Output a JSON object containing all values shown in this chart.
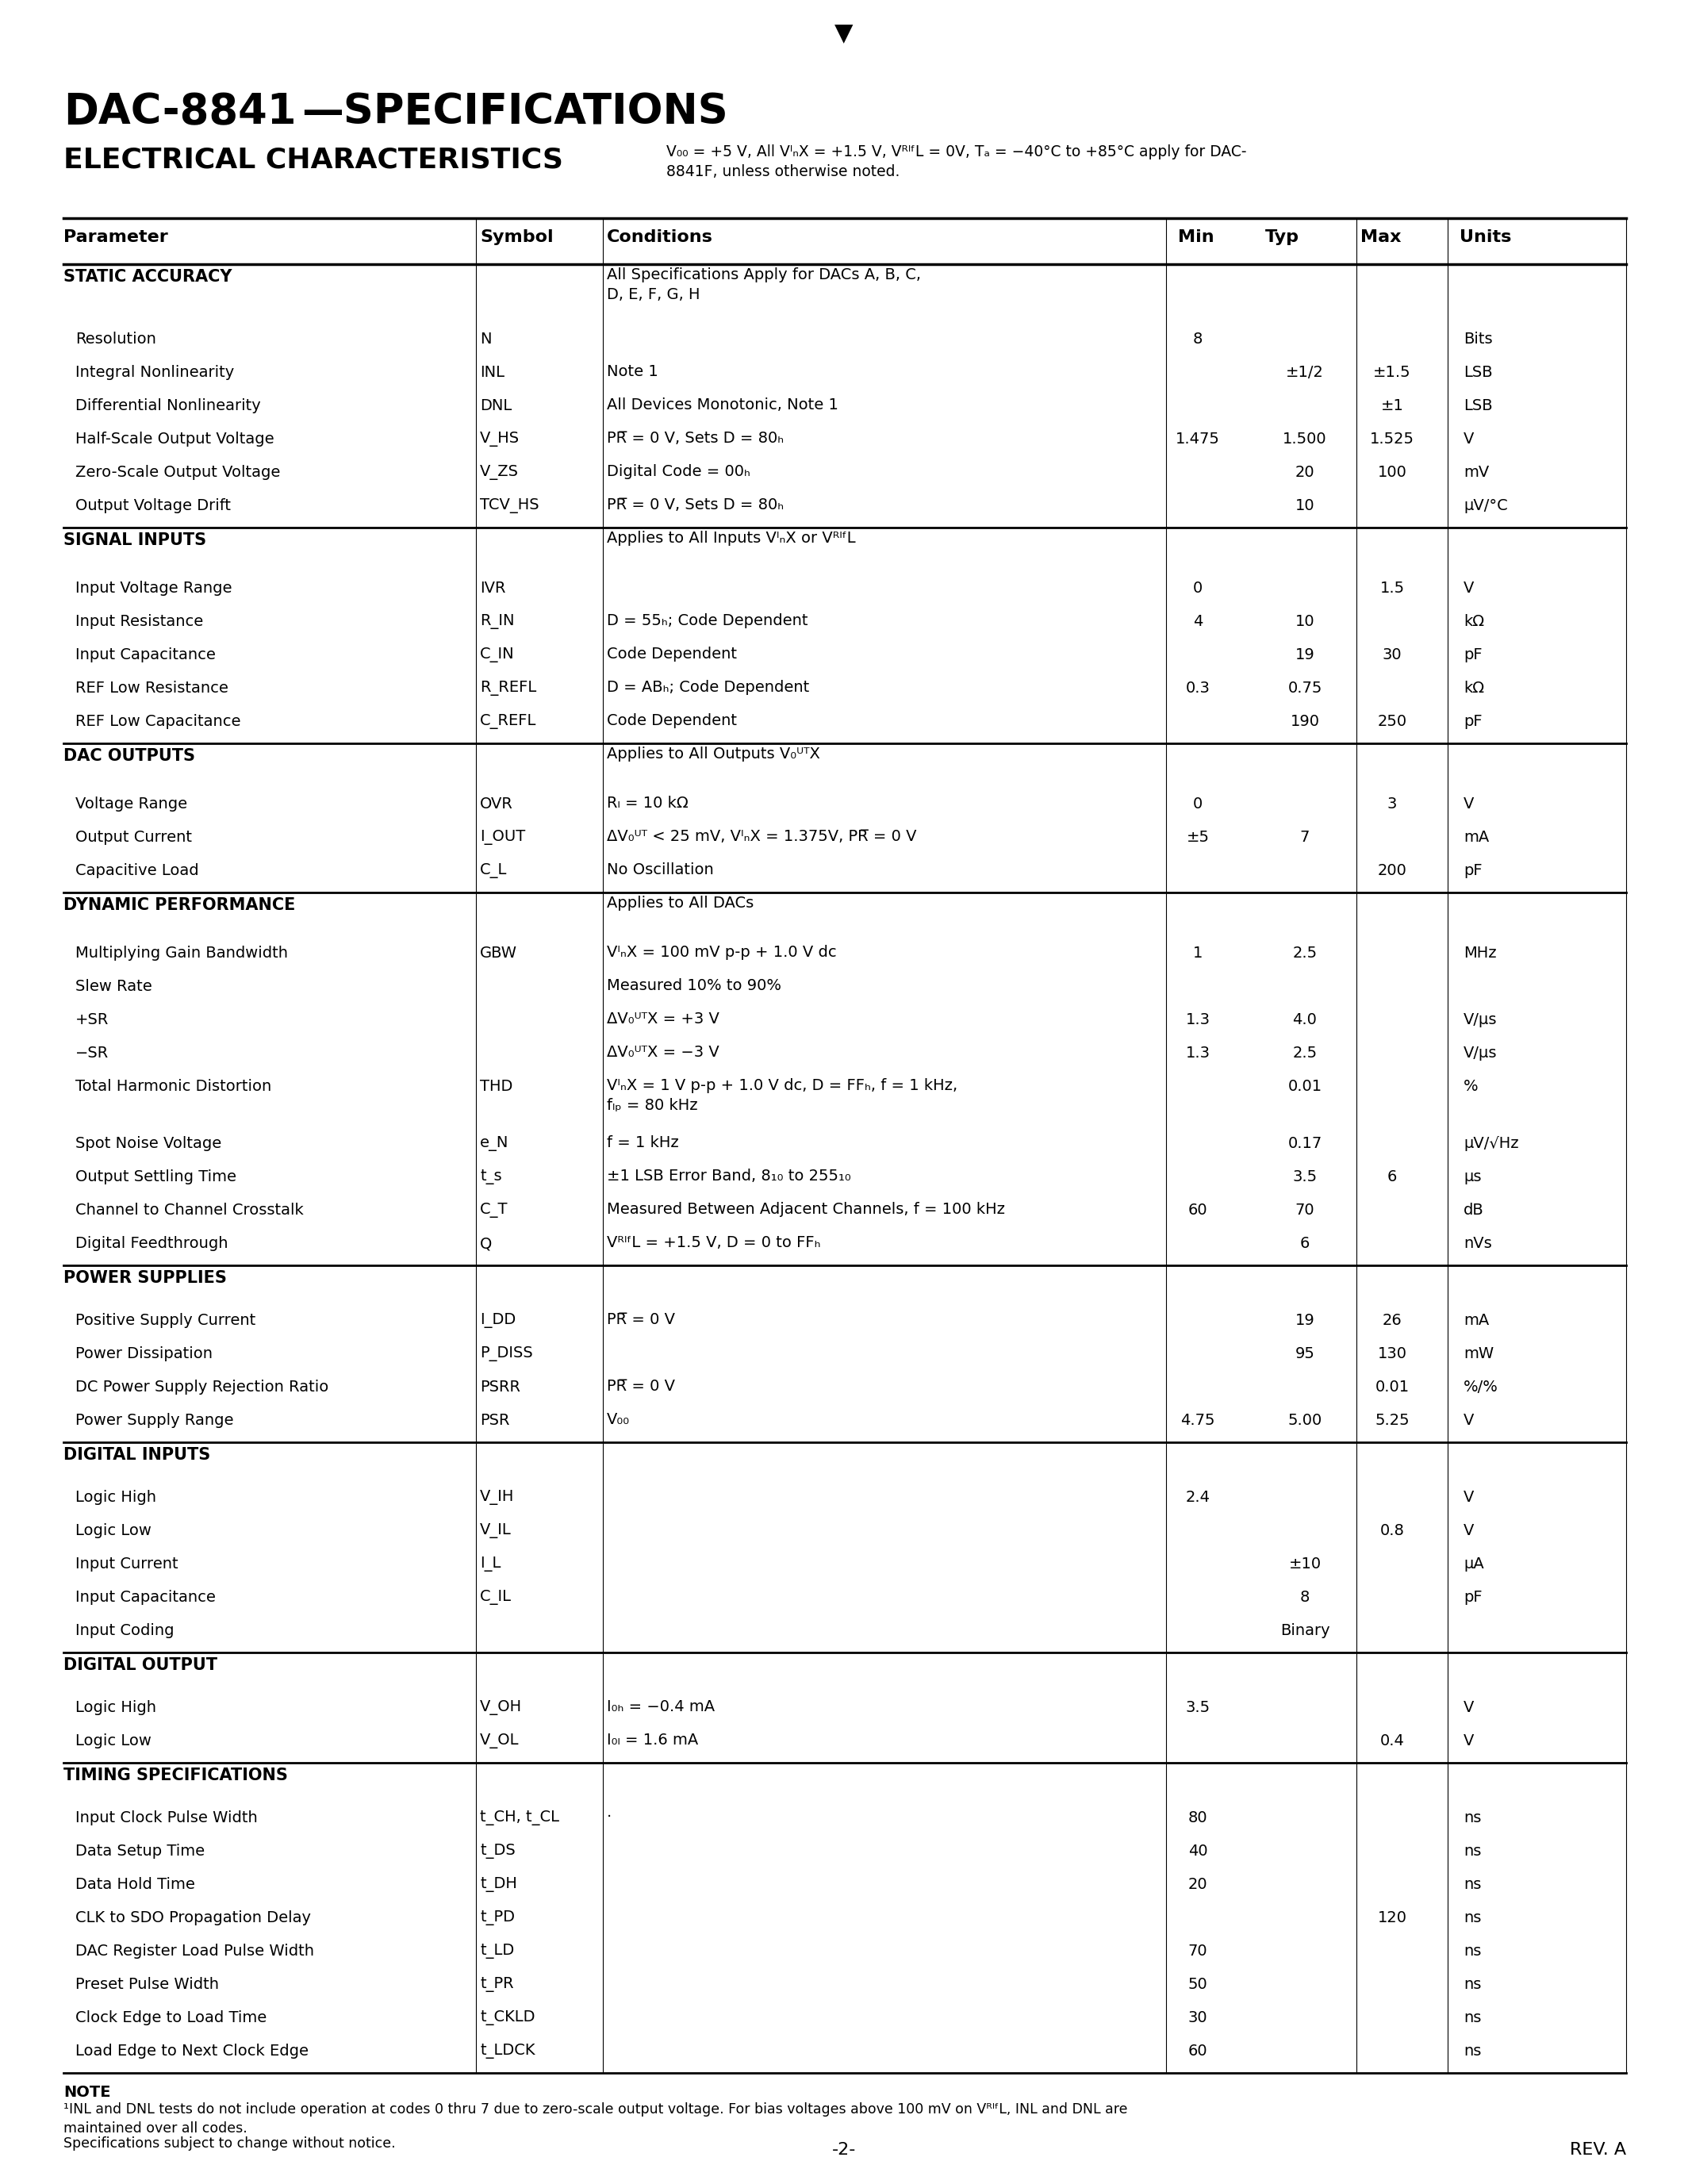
{
  "title": "DAC-8841 —SPECIFICATIONS",
  "subtitle_bold": "ELECTRICAL CHARACTERISTICS",
  "subtitle_small": "V₀₀ = +5 V, All VᴵₙX = +1.5 V, VᴿᴵᶠL = 0V, Tₐ = −40°C to +85°C apply for DAC-\n8841F, unless otherwise noted.",
  "page_num": "-2-",
  "rev": "REV. A",
  "bg_color": "#ffffff",
  "text_color": "#000000",
  "col_headers": [
    "Parameter",
    "Symbol",
    "Conditions",
    "Min",
    "Typ",
    "Max",
    "Units"
  ],
  "note1": "NOTE",
  "note2": "¹INL and DNL tests do not include operation at codes 0 thru 7 due to zero-scale output voltage. For bias voltages above 100 mV on VᴿᴵᶠL, INL and DNL are\nmaintained over all codes.",
  "note3": "Specifications subject to change without notice.",
  "table_rows": [
    {
      "type": "section",
      "param": "STATIC ACCURACY",
      "symbol": "",
      "cond": "All Specifications Apply for DACs A, B, C,\nD, E, F, G, H",
      "min": "",
      "typ": "",
      "max": "",
      "units": ""
    },
    {
      "type": "data",
      "param": "Resolution",
      "symbol": "N",
      "cond": "",
      "min": "8",
      "typ": "",
      "max": "",
      "units": "Bits"
    },
    {
      "type": "data",
      "param": "Integral Nonlinearity",
      "symbol": "INL",
      "cond": "Note 1",
      "min": "",
      "typ": "±1/2",
      "max": "±1.5",
      "units": "LSB"
    },
    {
      "type": "data",
      "param": "Differential Nonlinearity",
      "symbol": "DNL",
      "cond": "All Devices Monotonic, Note 1",
      "min": "",
      "typ": "",
      "max": "±1",
      "units": "LSB"
    },
    {
      "type": "data",
      "param": "Half-Scale Output Voltage",
      "symbol": "V_HS",
      "cond": "PR̅ = 0 V, Sets D = 80ₕ",
      "min": "1.475",
      "typ": "1.500",
      "max": "1.525",
      "units": "V"
    },
    {
      "type": "data",
      "param": "Zero-Scale Output Voltage",
      "symbol": "V_ZS",
      "cond": "Digital Code = 00ₕ",
      "min": "",
      "typ": "20",
      "max": "100",
      "units": "mV"
    },
    {
      "type": "data",
      "param": "Output Voltage Drift",
      "symbol": "TCV_HS",
      "cond": "PR̅ = 0 V, Sets D = 80ₕ",
      "min": "",
      "typ": "10",
      "max": "",
      "units": "μV/°C"
    },
    {
      "type": "section",
      "param": "SIGNAL INPUTS",
      "symbol": "",
      "cond": "Applies to All Inputs VᴵₙX or VᴿᴵᶠL",
      "min": "",
      "typ": "",
      "max": "",
      "units": ""
    },
    {
      "type": "data",
      "param": "   Input Voltage Range",
      "symbol": "IVR",
      "cond": "",
      "min": "0",
      "typ": "",
      "max": "1.5",
      "units": "V"
    },
    {
      "type": "data",
      "param": "   Input Resistance",
      "symbol": "R_IN",
      "cond": "D = 55ₕ; Code Dependent",
      "min": "4",
      "typ": "10",
      "max": "",
      "units": "kΩ"
    },
    {
      "type": "data",
      "param": "   Input Capacitance",
      "symbol": "C_IN",
      "cond": "Code Dependent",
      "min": "",
      "typ": "19",
      "max": "30",
      "units": "pF"
    },
    {
      "type": "data",
      "param": "   REF Low Resistance",
      "symbol": "R_REFL",
      "cond": "D = ABₕ; Code Dependent",
      "min": "0.3",
      "typ": "0.75",
      "max": "",
      "units": "kΩ"
    },
    {
      "type": "data",
      "param": "   REF Low Capacitance",
      "symbol": "C_REFL",
      "cond": "Code Dependent",
      "min": "",
      "typ": "190",
      "max": "250",
      "units": "pF"
    },
    {
      "type": "section",
      "param": "DAC OUTPUTS",
      "symbol": "",
      "cond": "Applies to All Outputs V₀ᵁᵀX",
      "min": "",
      "typ": "",
      "max": "",
      "units": ""
    },
    {
      "type": "data",
      "param": "   Voltage Range",
      "symbol": "OVR",
      "cond": "Rₗ = 10 kΩ",
      "min": "0",
      "typ": "",
      "max": "3",
      "units": "V"
    },
    {
      "type": "data",
      "param": "   Output Current",
      "symbol": "I_OUT",
      "cond": "ΔV₀ᵁᵀ < 25 mV, VᴵₙX = 1.375V, PR̅ = 0 V",
      "min": "±5",
      "typ": "7",
      "max": "",
      "units": "mA"
    },
    {
      "type": "data",
      "param": "   Capacitive Load",
      "symbol": "C_L",
      "cond": "No Oscillation",
      "min": "",
      "typ": "",
      "max": "200",
      "units": "pF"
    },
    {
      "type": "section",
      "param": "DYNAMIC PERFORMANCE",
      "symbol": "",
      "cond": "Applies to All DACs",
      "min": "",
      "typ": "",
      "max": "",
      "units": ""
    },
    {
      "type": "data",
      "param": "   Multiplying Gain Bandwidth",
      "symbol": "GBW",
      "cond": "VᴵₙX = 100 mV p-p + 1.0 V dc",
      "min": "1",
      "typ": "2.5",
      "max": "",
      "units": "MHz"
    },
    {
      "type": "data",
      "param": "   Slew Rate",
      "symbol": "",
      "cond": "Measured 10% to 90%",
      "min": "",
      "typ": "",
      "max": "",
      "units": ""
    },
    {
      "type": "data",
      "param": "      +SR",
      "symbol": "",
      "cond": "ΔV₀ᵁᵀX = +3 V",
      "min": "1.3",
      "typ": "4.0",
      "max": "",
      "units": "V/μs"
    },
    {
      "type": "data",
      "param": "      −SR",
      "symbol": "",
      "cond": "ΔV₀ᵁᵀX = −3 V",
      "min": "1.3",
      "typ": "2.5",
      "max": "",
      "units": "V/μs"
    },
    {
      "type": "data",
      "param": "   Total Harmonic Distortion",
      "symbol": "THD",
      "cond": "VᴵₙX = 1 V p-p + 1.0 V dc, D = FFₕ, f = 1 kHz,\nfₗₚ = 80 kHz",
      "min": "",
      "typ": "0.01",
      "max": "",
      "units": "%"
    },
    {
      "type": "data",
      "param": "   Spot Noise Voltage",
      "symbol": "e_N",
      "cond": "f = 1 kHz",
      "min": "",
      "typ": "0.17",
      "max": "",
      "units": "μV/√Hz"
    },
    {
      "type": "data",
      "param": "   Output Settling Time",
      "symbol": "t_s",
      "cond": "±1 LSB Error Band, 8₁₀ to 255₁₀",
      "min": "",
      "typ": "3.5",
      "max": "6",
      "units": "μs"
    },
    {
      "type": "data",
      "param": "   Channel to Channel Crosstalk",
      "symbol": "C_T",
      "cond": "Measured Between Adjacent Channels, f = 100 kHz",
      "min": "60",
      "typ": "70",
      "max": "",
      "units": "dB"
    },
    {
      "type": "data",
      "param": "   Digital Feedthrough",
      "symbol": "Q",
      "cond": "VᴿᴵᶠL = +1.5 V, D = 0 to FFₕ",
      "min": "",
      "typ": "6",
      "max": "",
      "units": "nVs"
    },
    {
      "type": "section",
      "param": "POWER SUPPLIES",
      "symbol": "",
      "cond": "",
      "min": "",
      "typ": "",
      "max": "",
      "units": ""
    },
    {
      "type": "data",
      "param": "   Positive Supply Current",
      "symbol": "I_DD",
      "cond": "PR̅ = 0 V",
      "min": "",
      "typ": "19",
      "max": "26",
      "units": "mA"
    },
    {
      "type": "data",
      "param": "   Power Dissipation",
      "symbol": "P_DISS",
      "cond": "",
      "min": "",
      "typ": "95",
      "max": "130",
      "units": "mW"
    },
    {
      "type": "data",
      "param": "   DC Power Supply Rejection Ratio",
      "symbol": "PSRR",
      "cond": "PR̅ = 0 V",
      "min": "",
      "typ": "",
      "max": "0.01",
      "units": "%/%"
    },
    {
      "type": "data",
      "param": "   Power Supply Range",
      "symbol": "PSR",
      "cond": "V₀₀",
      "min": "4.75",
      "typ": "5.00",
      "max": "5.25",
      "units": "V"
    },
    {
      "type": "section",
      "param": "DIGITAL INPUTS",
      "symbol": "",
      "cond": "",
      "min": "",
      "typ": "",
      "max": "",
      "units": ""
    },
    {
      "type": "data",
      "param": "   Logic High",
      "symbol": "V_IH",
      "cond": "",
      "min": "2.4",
      "typ": "",
      "max": "",
      "units": "V"
    },
    {
      "type": "data",
      "param": "   Logic Low",
      "symbol": "V_IL",
      "cond": "",
      "min": "",
      "typ": "",
      "max": "0.8",
      "units": "V"
    },
    {
      "type": "data",
      "param": "   Input Current",
      "symbol": "I_L",
      "cond": "",
      "min": "",
      "typ": "±10",
      "max": "",
      "units": "μA"
    },
    {
      "type": "data",
      "param": "   Input Capacitance",
      "symbol": "C_IL",
      "cond": "",
      "min": "",
      "typ": "8",
      "max": "",
      "units": "pF"
    },
    {
      "type": "data",
      "param": "   Input Coding",
      "symbol": "",
      "cond": "",
      "min": "",
      "typ": "Binary",
      "max": "",
      "units": ""
    },
    {
      "type": "section",
      "param": "DIGITAL OUTPUT",
      "symbol": "",
      "cond": "",
      "min": "",
      "typ": "",
      "max": "",
      "units": ""
    },
    {
      "type": "data",
      "param": "   Logic High",
      "symbol": "V_OH",
      "cond": "I₀ₕ = −0.4 mA",
      "min": "3.5",
      "typ": "",
      "max": "",
      "units": "V"
    },
    {
      "type": "data",
      "param": "   Logic Low",
      "symbol": "V_OL",
      "cond": "I₀ₗ = 1.6 mA",
      "min": "",
      "typ": "",
      "max": "0.4",
      "units": "V"
    },
    {
      "type": "section",
      "param": "TIMING SPECIFICATIONS",
      "symbol": "",
      "cond": "",
      "min": "",
      "typ": "",
      "max": "",
      "units": ""
    },
    {
      "type": "data",
      "param": "   Input Clock Pulse Width",
      "symbol": "t_CH, t_CL",
      "cond": "·",
      "min": "80",
      "typ": "",
      "max": "",
      "units": "ns"
    },
    {
      "type": "data",
      "param": "   Data Setup Time",
      "symbol": "t_DS",
      "cond": "",
      "min": "40",
      "typ": "",
      "max": "",
      "units": "ns"
    },
    {
      "type": "data",
      "param": "   Data Hold Time",
      "symbol": "t_DH",
      "cond": "",
      "min": "20",
      "typ": "",
      "max": "",
      "units": "ns"
    },
    {
      "type": "data",
      "param": "   CLK to SDO Propagation Delay",
      "symbol": "t_PD",
      "cond": "",
      "min": "",
      "typ": "",
      "max": "120",
      "units": "ns"
    },
    {
      "type": "data",
      "param": "   DAC Register Load Pulse Width",
      "symbol": "t_LD",
      "cond": "",
      "min": "70",
      "typ": "",
      "max": "",
      "units": "ns"
    },
    {
      "type": "data",
      "param": "   Preset Pulse Width",
      "symbol": "t_PR",
      "cond": "",
      "min": "50",
      "typ": "",
      "max": "",
      "units": "ns"
    },
    {
      "type": "data",
      "param": "   Clock Edge to Load Time",
      "symbol": "t_CKLD",
      "cond": "",
      "min": "30",
      "typ": "",
      "max": "",
      "units": "ns"
    },
    {
      "type": "data",
      "param": "   Load Edge to Next Clock Edge",
      "symbol": "t_LDCK",
      "cond": "",
      "min": "60",
      "typ": "",
      "max": "",
      "units": "ns"
    }
  ]
}
